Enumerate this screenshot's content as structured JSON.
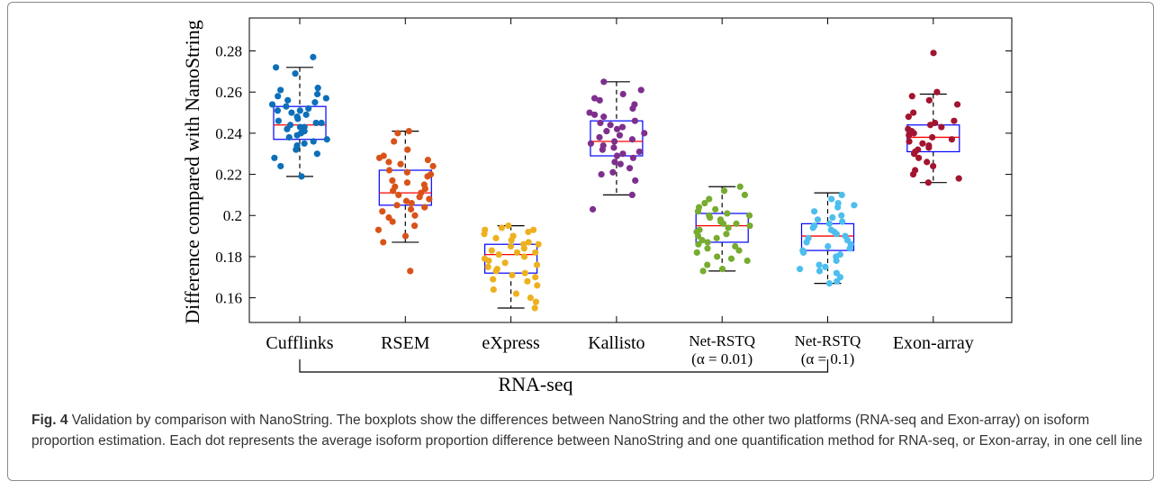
{
  "caption": {
    "label": "Fig. 4",
    "text": "Validation by comparison with NanoString. The boxplots show the differences between NanoString and the other two platforms (RNA-seq and Exon-array) on isoform proportion estimation. Each dot represents the average isoform proportion difference between NanoString and one quantification method for RNA-seq, or Exon-array, in one cell line"
  },
  "chart_data": {
    "type": "box",
    "ylabel": "Difference compared with NanoString",
    "ylim": [
      0.148,
      0.296
    ],
    "yticks": [
      "0.16",
      "0.18",
      "0.2",
      "0.22",
      "0.24",
      "0.26",
      "0.28"
    ],
    "group_label": "RNA-seq",
    "categories": [
      {
        "line1": "Cufflinks",
        "line2": "",
        "color": "#0d6fb8",
        "min": 0.219,
        "q1": 0.237,
        "median": 0.244,
        "q3": 0.253,
        "max": 0.272,
        "points": [
          0.277,
          0.272,
          0.269,
          0.262,
          0.261,
          0.259,
          0.258,
          0.257,
          0.256,
          0.255,
          0.254,
          0.253,
          0.252,
          0.251,
          0.251,
          0.25,
          0.249,
          0.248,
          0.247,
          0.246,
          0.245,
          0.245,
          0.244,
          0.243,
          0.243,
          0.242,
          0.241,
          0.24,
          0.239,
          0.238,
          0.237,
          0.236,
          0.235,
          0.234,
          0.232,
          0.23,
          0.228,
          0.224,
          0.219
        ]
      },
      {
        "line1": "RSEM",
        "line2": "",
        "color": "#d95319",
        "min": 0.187,
        "q1": 0.205,
        "median": 0.211,
        "q3": 0.222,
        "max": 0.241,
        "points": [
          0.241,
          0.24,
          0.236,
          0.232,
          0.229,
          0.228,
          0.227,
          0.226,
          0.225,
          0.224,
          0.222,
          0.221,
          0.22,
          0.219,
          0.217,
          0.216,
          0.215,
          0.214,
          0.213,
          0.212,
          0.211,
          0.21,
          0.209,
          0.208,
          0.207,
          0.206,
          0.205,
          0.204,
          0.203,
          0.202,
          0.2,
          0.199,
          0.197,
          0.195,
          0.193,
          0.19,
          0.187,
          0.173
        ]
      },
      {
        "line1": "eXpress",
        "line2": "",
        "color": "#edb120",
        "min": 0.155,
        "q1": 0.172,
        "median": 0.181,
        "q3": 0.186,
        "max": 0.195,
        "points": [
          0.195,
          0.194,
          0.193,
          0.193,
          0.192,
          0.191,
          0.19,
          0.189,
          0.188,
          0.187,
          0.186,
          0.186,
          0.185,
          0.184,
          0.183,
          0.182,
          0.182,
          0.181,
          0.18,
          0.179,
          0.178,
          0.177,
          0.176,
          0.175,
          0.174,
          0.173,
          0.172,
          0.171,
          0.17,
          0.169,
          0.168,
          0.166,
          0.164,
          0.162,
          0.16,
          0.158,
          0.155
        ]
      },
      {
        "line1": "Kallisto",
        "line2": "",
        "color": "#7e2f8e",
        "min": 0.21,
        "q1": 0.229,
        "median": 0.236,
        "q3": 0.246,
        "max": 0.265,
        "points": [
          0.265,
          0.261,
          0.259,
          0.257,
          0.256,
          0.254,
          0.252,
          0.25,
          0.249,
          0.248,
          0.246,
          0.245,
          0.244,
          0.243,
          0.242,
          0.241,
          0.24,
          0.239,
          0.238,
          0.237,
          0.236,
          0.235,
          0.234,
          0.233,
          0.232,
          0.231,
          0.23,
          0.229,
          0.228,
          0.226,
          0.225,
          0.223,
          0.221,
          0.22,
          0.217,
          0.21,
          0.203
        ]
      },
      {
        "line1": "Net-RSTQ",
        "line2": "(α = 0.01)",
        "color": "#77ac30",
        "min": 0.173,
        "q1": 0.187,
        "median": 0.195,
        "q3": 0.201,
        "max": 0.214,
        "points": [
          0.214,
          0.212,
          0.21,
          0.208,
          0.206,
          0.204,
          0.203,
          0.202,
          0.201,
          0.2,
          0.2,
          0.199,
          0.198,
          0.197,
          0.196,
          0.196,
          0.195,
          0.194,
          0.193,
          0.192,
          0.191,
          0.19,
          0.189,
          0.188,
          0.187,
          0.186,
          0.185,
          0.184,
          0.183,
          0.182,
          0.18,
          0.179,
          0.178,
          0.176,
          0.174,
          0.173
        ]
      },
      {
        "line1": "Net-RSTQ",
        "line2": "(α = 0.1)",
        "color": "#4dbeee",
        "min": 0.167,
        "q1": 0.183,
        "median": 0.19,
        "q3": 0.196,
        "max": 0.211,
        "points": [
          0.21,
          0.208,
          0.206,
          0.205,
          0.204,
          0.202,
          0.2,
          0.199,
          0.198,
          0.197,
          0.196,
          0.195,
          0.194,
          0.193,
          0.192,
          0.191,
          0.19,
          0.189,
          0.188,
          0.187,
          0.186,
          0.185,
          0.184,
          0.183,
          0.182,
          0.181,
          0.18,
          0.178,
          0.176,
          0.175,
          0.174,
          0.173,
          0.172,
          0.17,
          0.168,
          0.167
        ]
      },
      {
        "line1": "Exon-array",
        "line2": "",
        "color": "#a2142f",
        "min": 0.216,
        "q1": 0.231,
        "median": 0.238,
        "q3": 0.244,
        "max": 0.259,
        "points": [
          0.279,
          0.26,
          0.258,
          0.256,
          0.254,
          0.25,
          0.248,
          0.246,
          0.245,
          0.244,
          0.243,
          0.242,
          0.241,
          0.24,
          0.239,
          0.238,
          0.237,
          0.236,
          0.235,
          0.234,
          0.233,
          0.232,
          0.231,
          0.23,
          0.228,
          0.226,
          0.224,
          0.222,
          0.22,
          0.218,
          0.216
        ]
      }
    ],
    "box_color": "#0000ff",
    "median_color": "#ff0000",
    "whisker_color": "#000000"
  }
}
